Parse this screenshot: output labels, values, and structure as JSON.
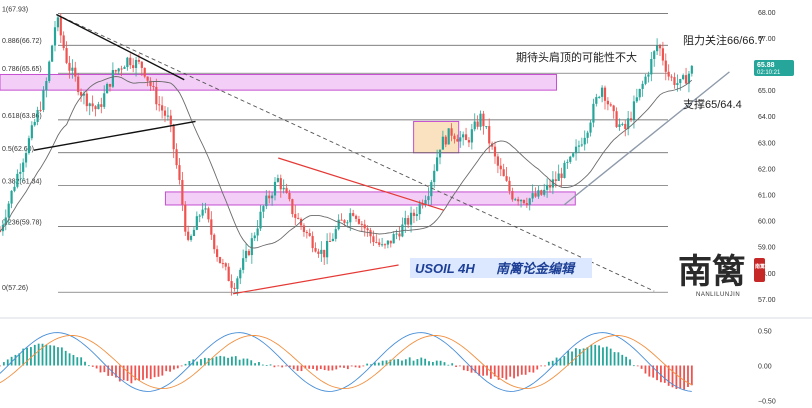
{
  "chart_data": [
    {
      "type": "candlestick",
      "symbol_label": "USOIL 4H",
      "title_cn": "南篱论金编辑",
      "ylim": [
        56.5,
        68.3
      ],
      "y_ticks": [
        57.0,
        58.0,
        59.0,
        60.0,
        61.0,
        62.0,
        63.0,
        64.0,
        65.0,
        66.0,
        67.0,
        68.0
      ],
      "price_badge": {
        "price": "65.88",
        "countdown": "02:10:21"
      },
      "fib_levels": [
        {
          "label": "1(67.93)",
          "value": 67.93
        },
        {
          "label": "0.886(66.72)",
          "value": 66.72
        },
        {
          "label": "0.786(65.65)",
          "value": 65.65
        },
        {
          "label": "0.618(63.86)",
          "value": 63.86
        },
        {
          "label": "0.5(62.60)",
          "value": 62.6
        },
        {
          "label": "0.382(61.34)",
          "value": 61.34
        },
        {
          "label": "0.236(59.78)",
          "value": 59.78
        },
        {
          "label": "0(57.26)",
          "value": 57.26
        }
      ],
      "zones": [
        {
          "name": "upper-resistance-zone",
          "x_range": [
            0,
            0.74
          ],
          "y_range": [
            65.0,
            65.6
          ],
          "color": "#e9a6f0"
        },
        {
          "name": "mid-support-zone",
          "x_range": [
            0.22,
            0.765
          ],
          "y_range": [
            60.6,
            61.1
          ],
          "color": "#e9a6f0"
        },
        {
          "name": "consolidation-box",
          "x_range": [
            0.55,
            0.61
          ],
          "y_range": [
            62.6,
            63.8
          ],
          "color": "#f6c88a"
        }
      ],
      "annotations": {
        "head_shoulders": "期待头肩顶的可能性不大",
        "resistance": "阻力关注66/66.7",
        "support": "支撑65/64.4",
        "logo_text": "南篱",
        "logo_sub": "NANLILUNJIN",
        "seal_text": "南篱"
      },
      "colors": {
        "up": "#26a69a",
        "down": "#ef5350",
        "ma": "#6b6b6b",
        "blue_trend": "#6aa9d8",
        "price_badge": "#26a69a",
        "signal_line": "#f19040",
        "macd_line": "#4a8fd8"
      }
    },
    {
      "type": "macd",
      "ylim": [
        -0.55,
        0.65
      ],
      "y_ticks": [
        0.5,
        0.0,
        -0.5
      ],
      "y_tick_labels": [
        "0.50",
        "0.00",
        "−0.50"
      ]
    }
  ]
}
